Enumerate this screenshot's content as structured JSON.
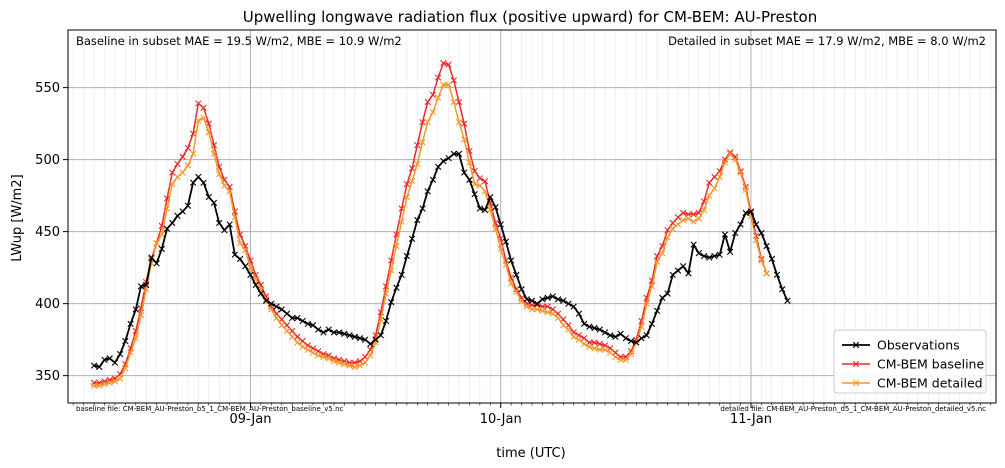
{
  "chart_data": {
    "type": "line",
    "title": "Upwelling longwave radiation flux (positive upward) for CM-BEM: AU-Preston",
    "xlabel": "time (UTC)",
    "ylabel": "LWup [W/m2]",
    "ylim": [
      331,
      590
    ],
    "xlim_hours": [
      -17.5,
      71.5
    ],
    "x_unit": "hours since 09-Jan 00:00 UTC",
    "x_ticks": [
      {
        "hour": 0,
        "label": "09-Jan"
      },
      {
        "hour": 24,
        "label": "10-Jan"
      },
      {
        "hour": 48,
        "label": "11-Jan"
      }
    ],
    "y_ticks": [
      350,
      400,
      450,
      500,
      550
    ],
    "grid": true,
    "legend_position": "lower-right",
    "annotations": {
      "stats_left": "Baseline in subset MAE = 19.5 W/m2, MBE = 10.9 W/m2",
      "stats_right": "Detailed in subset MAE = 17.9 W/m2, MBE = 8.0 W/m2",
      "file_left": "baseline file: CM-BEM_AU-Preston_b5_1_CM-BEM_AU-Preston_baseline_v5.nc",
      "file_right": "detailed file: CM-BEM_AU-Preston_d5_1_CM-BEM_AU-Preston_detailed_v5.nc"
    },
    "x_start_hour": -15,
    "x_step_hours": 0.5,
    "series": [
      {
        "name": "Observations",
        "color": "#000000",
        "values": [
          357,
          356,
          361,
          362,
          359,
          365,
          374,
          386,
          396,
          412,
          413,
          432,
          428,
          438,
          452,
          456,
          461,
          464,
          468,
          484,
          488,
          484,
          474,
          470,
          456,
          451,
          455,
          434,
          431,
          426,
          420,
          413,
          407,
          402,
          400,
          398,
          396,
          393,
          390,
          390,
          388,
          386,
          385,
          382,
          380,
          382,
          380,
          380,
          379,
          378,
          377,
          376,
          375,
          372,
          375,
          378,
          388,
          401,
          411,
          420,
          433,
          445,
          458,
          466,
          478,
          486,
          495,
          499,
          501,
          504,
          504,
          491,
          486,
          476,
          466,
          465,
          474,
          467,
          455,
          443,
          430,
          420,
          410,
          403,
          402,
          400,
          403,
          404,
          405,
          403,
          402,
          400,
          398,
          393,
          386,
          384,
          383,
          382,
          380,
          378,
          377,
          379,
          376,
          374,
          373,
          376,
          378,
          386,
          395,
          404,
          407,
          420,
          423,
          426,
          421,
          441,
          435,
          433,
          432,
          433,
          434,
          448,
          436,
          449,
          455,
          463,
          464,
          455,
          449,
          440,
          431,
          420,
          410,
          402
        ],
        "marker": "x"
      },
      {
        "name": "CM-BEM baseline",
        "color": "#e8282d",
        "values": [
          345,
          345,
          346,
          347,
          348,
          351,
          358,
          369,
          381,
          397,
          415,
          431,
          442,
          454,
          473,
          491,
          497,
          502,
          508,
          518,
          539,
          536,
          525,
          510,
          495,
          486,
          481,
          464,
          448,
          440,
          430,
          420,
          413,
          405,
          398,
          393,
          389,
          385,
          381,
          377,
          374,
          371,
          369,
          367,
          365,
          364,
          362,
          361,
          360,
          359,
          359,
          360,
          363,
          368,
          378,
          394,
          412,
          430,
          448,
          466,
          483,
          494,
          510,
          526,
          540,
          545,
          557,
          567,
          566,
          555,
          540,
          525,
          506,
          492,
          487,
          485,
          470,
          456,
          445,
          430,
          418,
          410,
          404,
          400,
          399,
          399,
          398,
          398,
          396,
          393,
          389,
          385,
          380,
          378,
          376,
          373,
          373,
          372,
          371,
          369,
          366,
          363,
          363,
          367,
          375,
          388,
          404,
          416,
          433,
          440,
          451,
          456,
          460,
          463,
          462,
          462,
          463,
          471,
          484,
          488,
          492,
          500,
          505,
          502,
          492,
          481,
          463,
          447,
          431,
          421
        ],
        "marker": "x"
      },
      {
        "name": "CM-BEM detailed",
        "color": "#f7962a",
        "values": [
          343,
          343,
          344,
          345,
          346,
          348,
          355,
          366,
          376,
          392,
          410,
          428,
          442,
          448,
          466,
          483,
          488,
          491,
          496,
          504,
          527,
          529,
          519,
          504,
          490,
          482,
          478,
          460,
          442,
          437,
          425,
          417,
          410,
          403,
          396,
          390,
          385,
          381,
          377,
          373,
          370,
          368,
          366,
          364,
          363,
          362,
          360,
          359,
          358,
          357,
          356,
          357,
          359,
          364,
          373,
          389,
          407,
          423,
          440,
          457,
          474,
          485,
          497,
          512,
          526,
          533,
          543,
          552,
          552,
          540,
          526,
          514,
          498,
          483,
          482,
          478,
          465,
          452,
          438,
          427,
          414,
          408,
          402,
          398,
          396,
          396,
          395,
          394,
          393,
          390,
          385,
          382,
          377,
          375,
          372,
          370,
          369,
          368,
          368,
          366,
          363,
          361,
          361,
          365,
          373,
          384,
          400,
          412,
          429,
          435,
          446,
          452,
          455,
          458,
          459,
          457,
          459,
          465,
          475,
          480,
          488,
          498,
          504,
          500,
          491,
          479,
          461,
          444,
          430,
          421
        ],
        "marker": "x"
      }
    ]
  }
}
